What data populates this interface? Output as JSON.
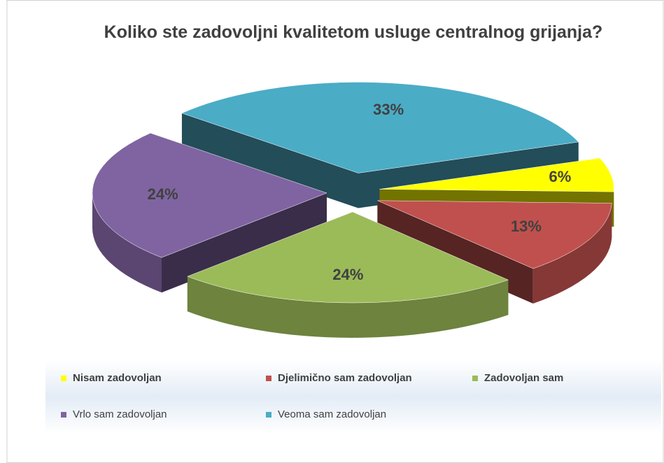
{
  "chart_data": {
    "type": "pie",
    "title": "Koliko ste zadovoljni kvalitetom usluge centralnog grijanja?",
    "categories": [
      "Nisam zadovoljan",
      "Djelimično sam zadovoljan",
      "Zadovoljan sam",
      "Vrlo sam zadovoljan",
      "Veoma sam zadovoljan"
    ],
    "values": [
      6,
      13,
      24,
      24,
      33
    ],
    "value_labels": [
      "6%",
      "13%",
      "24%",
      "24%",
      "33%"
    ],
    "colors": [
      "#ffff00",
      "#c0504d",
      "#9bbb59",
      "#8064a2",
      "#4bacc6"
    ],
    "legend": "bottom"
  }
}
